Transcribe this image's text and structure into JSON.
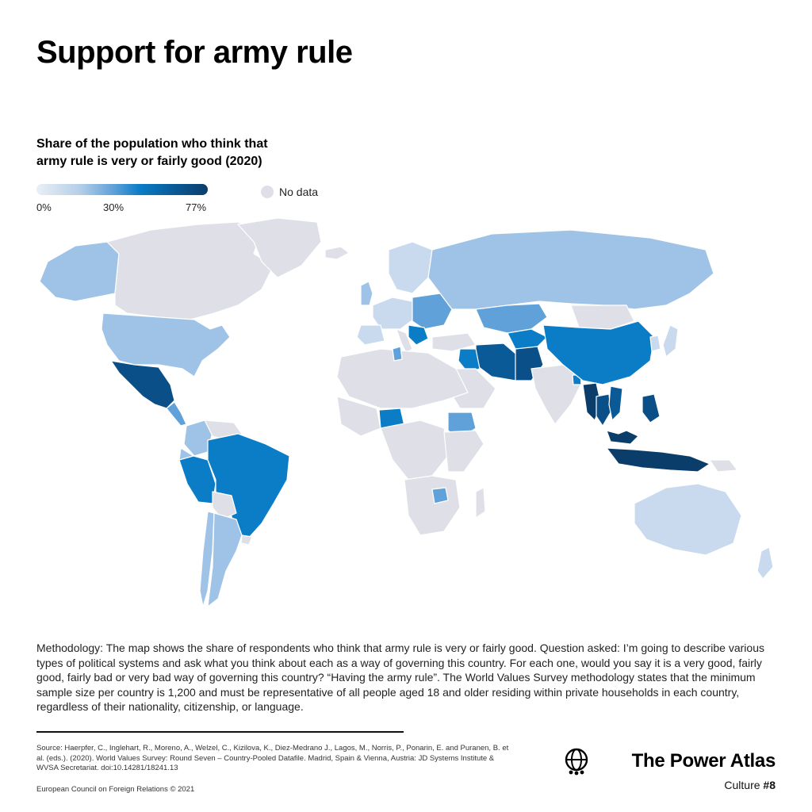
{
  "title": "Support for army rule",
  "subtitle": "Share of the population who think that army rule is very or fairly good (2020)",
  "legend": {
    "min_label": "0%",
    "mid_label": "30%",
    "max_label": "77%",
    "no_data_label": "No data",
    "colors": {
      "scale_low": "#e9eff6",
      "scale_mid": "#0b7dc7",
      "scale_high": "#0b3d6b",
      "no_data": "#dfe0e7"
    }
  },
  "map": {
    "projection": "world",
    "color_levels": {
      "light": "#c9daee",
      "mid_light": "#9fc3e6",
      "mid": "#5fa1d8",
      "strong": "#0b7dc7",
      "dark": "#0b4f88",
      "darkest": "#0b3d6b",
      "no_data": "#dfe0e7"
    }
  },
  "methodology": "Methodology: The map shows the share of respondents who think that army rule is very or fairly good. Question asked: I’m going to describe various types of political systems and ask what you think about each as a way of governing this country. For each one, would you say it is a very good, fairly good, fairly bad or very bad way of governing this country? “Having the army rule”. The World Values Survey methodology states that the minimum sample size per country is 1,200 and must be representative of all people aged 18 and older residing within private households in each country, regardless of their nationality, citizenship, or language.",
  "source": "Source: Haerpfer, C., Inglehart, R., Moreno, A., Welzel, C., Kizilova, K., Diez-Medrano J., Lagos, M., Norris, P., Ponarin, E. and Puranen, B. et al. (eds.). (2020). World Values Survey: Round Seven – Country-Pooled Datafile. Madrid, Spain & Vienna, Austria: JD Systems Institute & WVSA Secretariat. doi:10.14281/18241.13",
  "copyright": "European Council on Foreign Relations © 2021",
  "brand": {
    "name": "The Power Atlas",
    "tag_prefix": "Culture ",
    "tag_number": "#8",
    "icon": "globe-people-icon"
  }
}
